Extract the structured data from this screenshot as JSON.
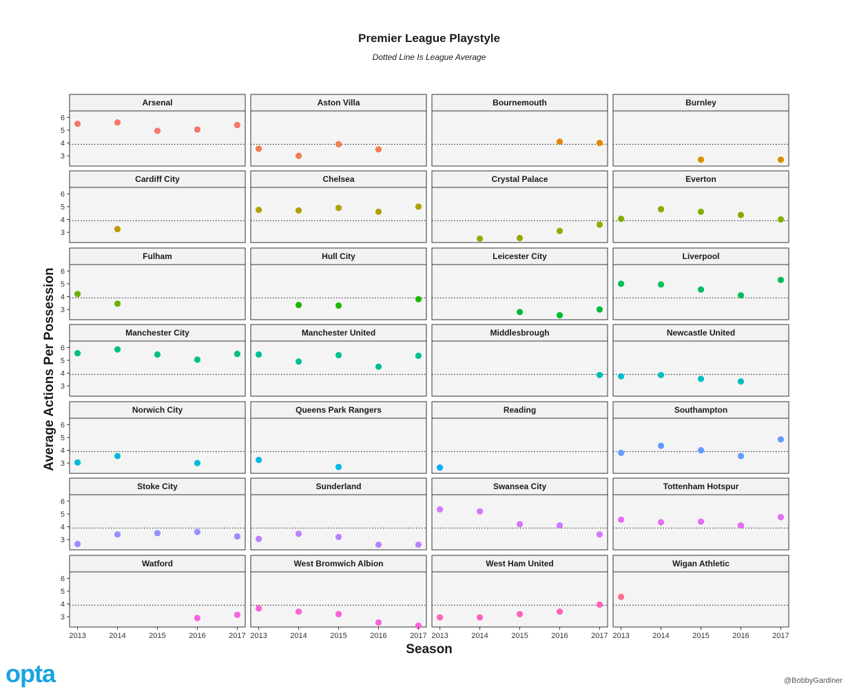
{
  "header": {
    "title": "Premier League Playstyle",
    "subtitle": "Dotted Line Is League Average"
  },
  "footer": {
    "logo": "opta",
    "credit": "@BobbyGardiner"
  },
  "chart_data": {
    "type": "scatter",
    "title": "Premier League Playstyle",
    "subtitle": "Dotted Line Is League Average",
    "xlabel": "Season",
    "ylabel": "Average Actions Per Possession",
    "x_ticks": [
      2013,
      2014,
      2015,
      2016,
      2017
    ],
    "y_ticks": [
      3,
      4,
      5,
      6
    ],
    "xlim": [
      2012.8,
      2017.2
    ],
    "ylim": [
      2.2,
      6.5
    ],
    "league_average": 3.9,
    "facet_layout": "7 rows x 4 columns",
    "panels": [
      {
        "team": "Arsenal",
        "color": "#F8766D",
        "points": [
          [
            2013,
            5.5
          ],
          [
            2014,
            5.6
          ],
          [
            2015,
            4.95
          ],
          [
            2016,
            5.05
          ],
          [
            2017,
            5.4
          ]
        ]
      },
      {
        "team": "Aston Villa",
        "color": "#F07E4E",
        "points": [
          [
            2013,
            3.55
          ],
          [
            2014,
            3.0
          ],
          [
            2015,
            3.9
          ],
          [
            2016,
            3.5
          ]
        ]
      },
      {
        "team": "Bournemouth",
        "color": "#E58700",
        "points": [
          [
            2016,
            4.1
          ],
          [
            2017,
            4.0
          ]
        ]
      },
      {
        "team": "Burnley",
        "color": "#D39200",
        "points": [
          [
            2015,
            2.7
          ],
          [
            2017,
            2.7
          ]
        ]
      },
      {
        "team": "Cardiff City",
        "color": "#C09B00",
        "points": [
          [
            2014,
            3.25
          ]
        ]
      },
      {
        "team": "Chelsea",
        "color": "#ADA200",
        "points": [
          [
            2013,
            4.75
          ],
          [
            2014,
            4.7
          ],
          [
            2015,
            4.9
          ],
          [
            2016,
            4.6
          ],
          [
            2017,
            5.0
          ]
        ]
      },
      {
        "team": "Crystal Palace",
        "color": "#99A800",
        "points": [
          [
            2014,
            2.5
          ],
          [
            2015,
            2.55
          ],
          [
            2016,
            3.1
          ],
          [
            2017,
            3.6
          ]
        ]
      },
      {
        "team": "Everton",
        "color": "#85AD00",
        "points": [
          [
            2013,
            4.05
          ],
          [
            2014,
            4.8
          ],
          [
            2015,
            4.6
          ],
          [
            2016,
            4.35
          ],
          [
            2017,
            4.0
          ]
        ]
      },
      {
        "team": "Fulham",
        "color": "#6BB100",
        "points": [
          [
            2013,
            4.2
          ],
          [
            2014,
            3.45
          ]
        ]
      },
      {
        "team": "Hull City",
        "color": "#1FB700",
        "points": [
          [
            2014,
            3.35
          ],
          [
            2015,
            3.3
          ],
          [
            2017,
            3.8
          ]
        ]
      },
      {
        "team": "Leicester City",
        "color": "#00BA38",
        "points": [
          [
            2015,
            2.8
          ],
          [
            2016,
            2.55
          ],
          [
            2017,
            3.0
          ]
        ]
      },
      {
        "team": "Liverpool",
        "color": "#00BC5A",
        "points": [
          [
            2013,
            5.0
          ],
          [
            2014,
            4.95
          ],
          [
            2015,
            4.55
          ],
          [
            2016,
            4.1
          ],
          [
            2017,
            5.3
          ]
        ]
      },
      {
        "team": "Manchester City",
        "color": "#00BF7D",
        "points": [
          [
            2013,
            5.55
          ],
          [
            2014,
            5.85
          ],
          [
            2015,
            5.45
          ],
          [
            2016,
            5.05
          ],
          [
            2017,
            5.5
          ]
        ]
      },
      {
        "team": "Manchester United",
        "color": "#00C097",
        "points": [
          [
            2013,
            5.45
          ],
          [
            2014,
            4.9
          ],
          [
            2015,
            5.4
          ],
          [
            2016,
            4.5
          ],
          [
            2017,
            5.35
          ]
        ]
      },
      {
        "team": "Middlesbrough",
        "color": "#00C0AF",
        "points": [
          [
            2017,
            3.85
          ]
        ]
      },
      {
        "team": "Newcastle United",
        "color": "#00BFC4",
        "points": [
          [
            2013,
            3.75
          ],
          [
            2014,
            3.85
          ],
          [
            2015,
            3.55
          ],
          [
            2016,
            3.35
          ]
        ]
      },
      {
        "team": "Norwich City",
        "color": "#00BCD8",
        "points": [
          [
            2013,
            3.05
          ],
          [
            2014,
            3.55
          ],
          [
            2016,
            3.0
          ]
        ]
      },
      {
        "team": "Queens Park Rangers",
        "color": "#00B8E7",
        "points": [
          [
            2013,
            3.25
          ],
          [
            2015,
            2.7
          ]
        ]
      },
      {
        "team": "Reading",
        "color": "#00B0F6",
        "points": [
          [
            2013,
            2.65
          ]
        ]
      },
      {
        "team": "Southampton",
        "color": "#619CFF",
        "points": [
          [
            2013,
            3.8
          ],
          [
            2014,
            4.35
          ],
          [
            2015,
            4.0
          ],
          [
            2016,
            3.55
          ],
          [
            2017,
            4.85
          ]
        ]
      },
      {
        "team": "Stoke City",
        "color": "#9590FF",
        "points": [
          [
            2013,
            2.65
          ],
          [
            2014,
            3.4
          ],
          [
            2015,
            3.5
          ],
          [
            2016,
            3.6
          ],
          [
            2017,
            3.25
          ]
        ]
      },
      {
        "team": "Sunderland",
        "color": "#B983FF",
        "points": [
          [
            2013,
            3.05
          ],
          [
            2014,
            3.45
          ],
          [
            2015,
            3.2
          ],
          [
            2016,
            2.6
          ],
          [
            2017,
            2.6
          ]
        ]
      },
      {
        "team": "Swansea City",
        "color": "#D277FF",
        "points": [
          [
            2013,
            5.35
          ],
          [
            2014,
            5.2
          ],
          [
            2015,
            4.2
          ],
          [
            2016,
            4.1
          ],
          [
            2017,
            3.4
          ]
        ]
      },
      {
        "team": "Tottenham Hotspur",
        "color": "#E76BF3",
        "points": [
          [
            2013,
            4.55
          ],
          [
            2014,
            4.35
          ],
          [
            2015,
            4.4
          ],
          [
            2016,
            4.1
          ],
          [
            2017,
            4.75
          ]
        ]
      },
      {
        "team": "Watford",
        "color": "#F564E3",
        "points": [
          [
            2016,
            2.9
          ],
          [
            2017,
            3.15
          ]
        ]
      },
      {
        "team": "West Bromwich Albion",
        "color": "#FC61D5",
        "points": [
          [
            2013,
            3.65
          ],
          [
            2014,
            3.4
          ],
          [
            2015,
            3.2
          ],
          [
            2016,
            2.55
          ],
          [
            2017,
            2.3
          ]
        ]
      },
      {
        "team": "West Ham United",
        "color": "#FF62BC",
        "points": [
          [
            2013,
            2.95
          ],
          [
            2014,
            2.95
          ],
          [
            2015,
            3.2
          ],
          [
            2016,
            3.4
          ],
          [
            2017,
            3.95
          ]
        ]
      },
      {
        "team": "Wigan Athletic",
        "color": "#FF6C91",
        "points": [
          [
            2013,
            4.55
          ]
        ]
      }
    ]
  }
}
